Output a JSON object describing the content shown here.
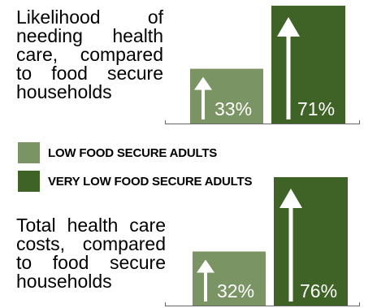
{
  "chart_data": [
    {
      "type": "bar",
      "title": "Likelihood of needing health care, compared to food secure households",
      "categories": [
        "LOW FOOD SECURE ADULTS",
        "VERY LOW FOOD SECURE ADULTS"
      ],
      "values": [
        33,
        71
      ],
      "value_labels": [
        "33%",
        "71%"
      ],
      "ylim": [
        0,
        75
      ]
    },
    {
      "type": "bar",
      "title": "Total health care costs, compared to food secure households",
      "categories": [
        "LOW FOOD SECURE ADULTS",
        "VERY LOW FOOD SECURE ADULTS"
      ],
      "values": [
        32,
        76
      ],
      "value_labels": [
        "32%",
        "76%"
      ],
      "ylim": [
        0,
        80
      ]
    }
  ],
  "legend": [
    {
      "label": "LOW FOOD SECURE ADULTS",
      "color": "#7b9463"
    },
    {
      "label": "VERY LOW FOOD SECURE ADULTS",
      "color": "#3f6326"
    }
  ],
  "colors": {
    "low": "#7b9463",
    "very_low": "#3f6326",
    "text_on_bar": "#ffffff",
    "baseline": "#666666"
  },
  "icons": [
    "up-arrow-icon"
  ]
}
